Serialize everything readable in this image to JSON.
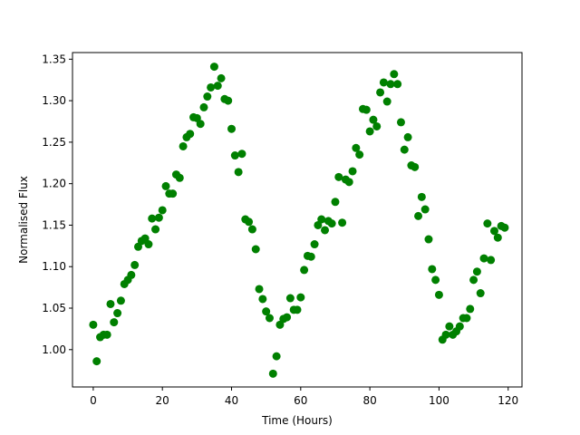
{
  "chart_data": {
    "type": "scatter",
    "title": "",
    "xlabel": "Time (Hours)",
    "ylabel": "Normalised Flux",
    "xlim": [
      -6,
      124
    ],
    "ylim": [
      0.955,
      1.358
    ],
    "xticks": [
      0,
      20,
      40,
      60,
      80,
      100,
      120
    ],
    "yticks": [
      1.0,
      1.05,
      1.1,
      1.15,
      1.2,
      1.25,
      1.3,
      1.35
    ],
    "grid": false,
    "legend": "none",
    "marker_color": "#008000",
    "series": [
      {
        "points": [
          [
            0,
            1.03
          ],
          [
            1,
            0.986
          ],
          [
            2,
            1.015
          ],
          [
            3,
            1.018
          ],
          [
            4,
            1.018
          ],
          [
            5,
            1.055
          ],
          [
            6,
            1.033
          ],
          [
            7,
            1.044
          ],
          [
            8,
            1.059
          ],
          [
            9,
            1.079
          ],
          [
            10,
            1.084
          ],
          [
            11,
            1.09
          ],
          [
            12,
            1.102
          ],
          [
            13,
            1.124
          ],
          [
            14,
            1.131
          ],
          [
            15,
            1.134
          ],
          [
            16,
            1.127
          ],
          [
            17,
            1.158
          ],
          [
            18,
            1.145
          ],
          [
            19,
            1.159
          ],
          [
            20,
            1.168
          ],
          [
            21,
            1.197
          ],
          [
            22,
            1.188
          ],
          [
            23,
            1.188
          ],
          [
            24,
            1.211
          ],
          [
            25,
            1.207
          ],
          [
            26,
            1.245
          ],
          [
            27,
            1.256
          ],
          [
            28,
            1.26
          ],
          [
            29,
            1.28
          ],
          [
            30,
            1.279
          ],
          [
            31,
            1.272
          ],
          [
            32,
            1.292
          ],
          [
            33,
            1.305
          ],
          [
            34,
            1.316
          ],
          [
            35,
            1.341
          ],
          [
            36,
            1.318
          ],
          [
            37,
            1.327
          ],
          [
            38,
            1.302
          ],
          [
            39,
            1.3
          ],
          [
            40,
            1.266
          ],
          [
            41,
            1.234
          ],
          [
            42,
            1.214
          ],
          [
            43,
            1.236
          ],
          [
            44,
            1.157
          ],
          [
            45,
            1.154
          ],
          [
            46,
            1.145
          ],
          [
            47,
            1.121
          ],
          [
            48,
            1.073
          ],
          [
            49,
            1.061
          ],
          [
            50,
            1.046
          ],
          [
            51,
            1.038
          ],
          [
            52,
            0.971
          ],
          [
            53,
            0.992
          ],
          [
            54,
            1.03
          ],
          [
            55,
            1.037
          ],
          [
            56,
            1.039
          ],
          [
            57,
            1.062
          ],
          [
            58,
            1.048
          ],
          [
            59,
            1.048
          ],
          [
            60,
            1.063
          ],
          [
            61,
            1.096
          ],
          [
            62,
            1.113
          ],
          [
            63,
            1.112
          ],
          [
            64,
            1.127
          ],
          [
            65,
            1.15
          ],
          [
            66,
            1.157
          ],
          [
            67,
            1.144
          ],
          [
            68,
            1.155
          ],
          [
            69,
            1.152
          ],
          [
            70,
            1.178
          ],
          [
            71,
            1.208
          ],
          [
            72,
            1.153
          ],
          [
            73,
            1.205
          ],
          [
            74,
            1.202
          ],
          [
            75,
            1.215
          ],
          [
            76,
            1.243
          ],
          [
            77,
            1.235
          ],
          [
            78,
            1.29
          ],
          [
            79,
            1.289
          ],
          [
            80,
            1.263
          ],
          [
            81,
            1.277
          ],
          [
            82,
            1.269
          ],
          [
            83,
            1.31
          ],
          [
            84,
            1.322
          ],
          [
            85,
            1.299
          ],
          [
            86,
            1.32
          ],
          [
            87,
            1.332
          ],
          [
            88,
            1.32
          ],
          [
            89,
            1.274
          ],
          [
            90,
            1.241
          ],
          [
            91,
            1.256
          ],
          [
            92,
            1.222
          ],
          [
            93,
            1.22
          ],
          [
            94,
            1.161
          ],
          [
            95,
            1.184
          ],
          [
            96,
            1.169
          ],
          [
            97,
            1.133
          ],
          [
            98,
            1.097
          ],
          [
            99,
            1.084
          ],
          [
            100,
            1.066
          ],
          [
            101,
            1.012
          ],
          [
            102,
            1.018
          ],
          [
            103,
            1.028
          ],
          [
            104,
            1.018
          ],
          [
            105,
            1.022
          ],
          [
            106,
            1.028
          ],
          [
            107,
            1.038
          ],
          [
            108,
            1.038
          ],
          [
            109,
            1.049
          ],
          [
            110,
            1.084
          ],
          [
            111,
            1.094
          ],
          [
            112,
            1.068
          ],
          [
            113,
            1.11
          ],
          [
            114,
            1.152
          ],
          [
            115,
            1.108
          ],
          [
            116,
            1.143
          ],
          [
            117,
            1.135
          ],
          [
            118,
            1.149
          ],
          [
            119,
            1.147
          ]
        ]
      }
    ]
  }
}
